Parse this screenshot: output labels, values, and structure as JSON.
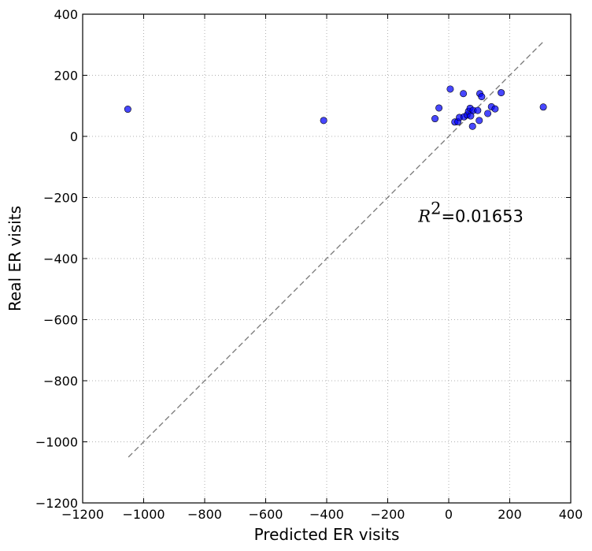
{
  "chart_data": {
    "type": "scatter",
    "title": "",
    "xlabel": "Predicted ER visits",
    "ylabel": "Real ER visits",
    "xlim": [
      -1200,
      400
    ],
    "ylim": [
      -1200,
      400
    ],
    "xticks": [
      -1200,
      -1000,
      -800,
      -600,
      -400,
      -200,
      0,
      200,
      400
    ],
    "yticks": [
      -1200,
      -1000,
      -800,
      -600,
      -400,
      -200,
      0,
      200,
      400
    ],
    "grid": true,
    "point_color": "#0000ff",
    "reference_line": {
      "from": [
        -1050,
        -1050
      ],
      "to": [
        308,
        308
      ],
      "style": "dashed",
      "color": "#777777"
    },
    "annotation": {
      "symbol": "R",
      "exponent": "2",
      "value": "=0.01653",
      "x": -100,
      "y": -280
    },
    "points": [
      {
        "x": -1052,
        "y": 89
      },
      {
        "x": -410,
        "y": 52
      },
      {
        "x": -45,
        "y": 58
      },
      {
        "x": -32,
        "y": 93
      },
      {
        "x": 5,
        "y": 155
      },
      {
        "x": 20,
        "y": 47
      },
      {
        "x": 30,
        "y": 48
      },
      {
        "x": 35,
        "y": 62
      },
      {
        "x": 48,
        "y": 140
      },
      {
        "x": 50,
        "y": 64
      },
      {
        "x": 60,
        "y": 70
      },
      {
        "x": 65,
        "y": 82
      },
      {
        "x": 70,
        "y": 92
      },
      {
        "x": 72,
        "y": 67
      },
      {
        "x": 78,
        "y": 33
      },
      {
        "x": 80,
        "y": 85
      },
      {
        "x": 95,
        "y": 85
      },
      {
        "x": 100,
        "y": 52
      },
      {
        "x": 102,
        "y": 140
      },
      {
        "x": 108,
        "y": 130
      },
      {
        "x": 128,
        "y": 75
      },
      {
        "x": 140,
        "y": 97
      },
      {
        "x": 152,
        "y": 90
      },
      {
        "x": 172,
        "y": 143
      },
      {
        "x": 310,
        "y": 96
      }
    ]
  }
}
